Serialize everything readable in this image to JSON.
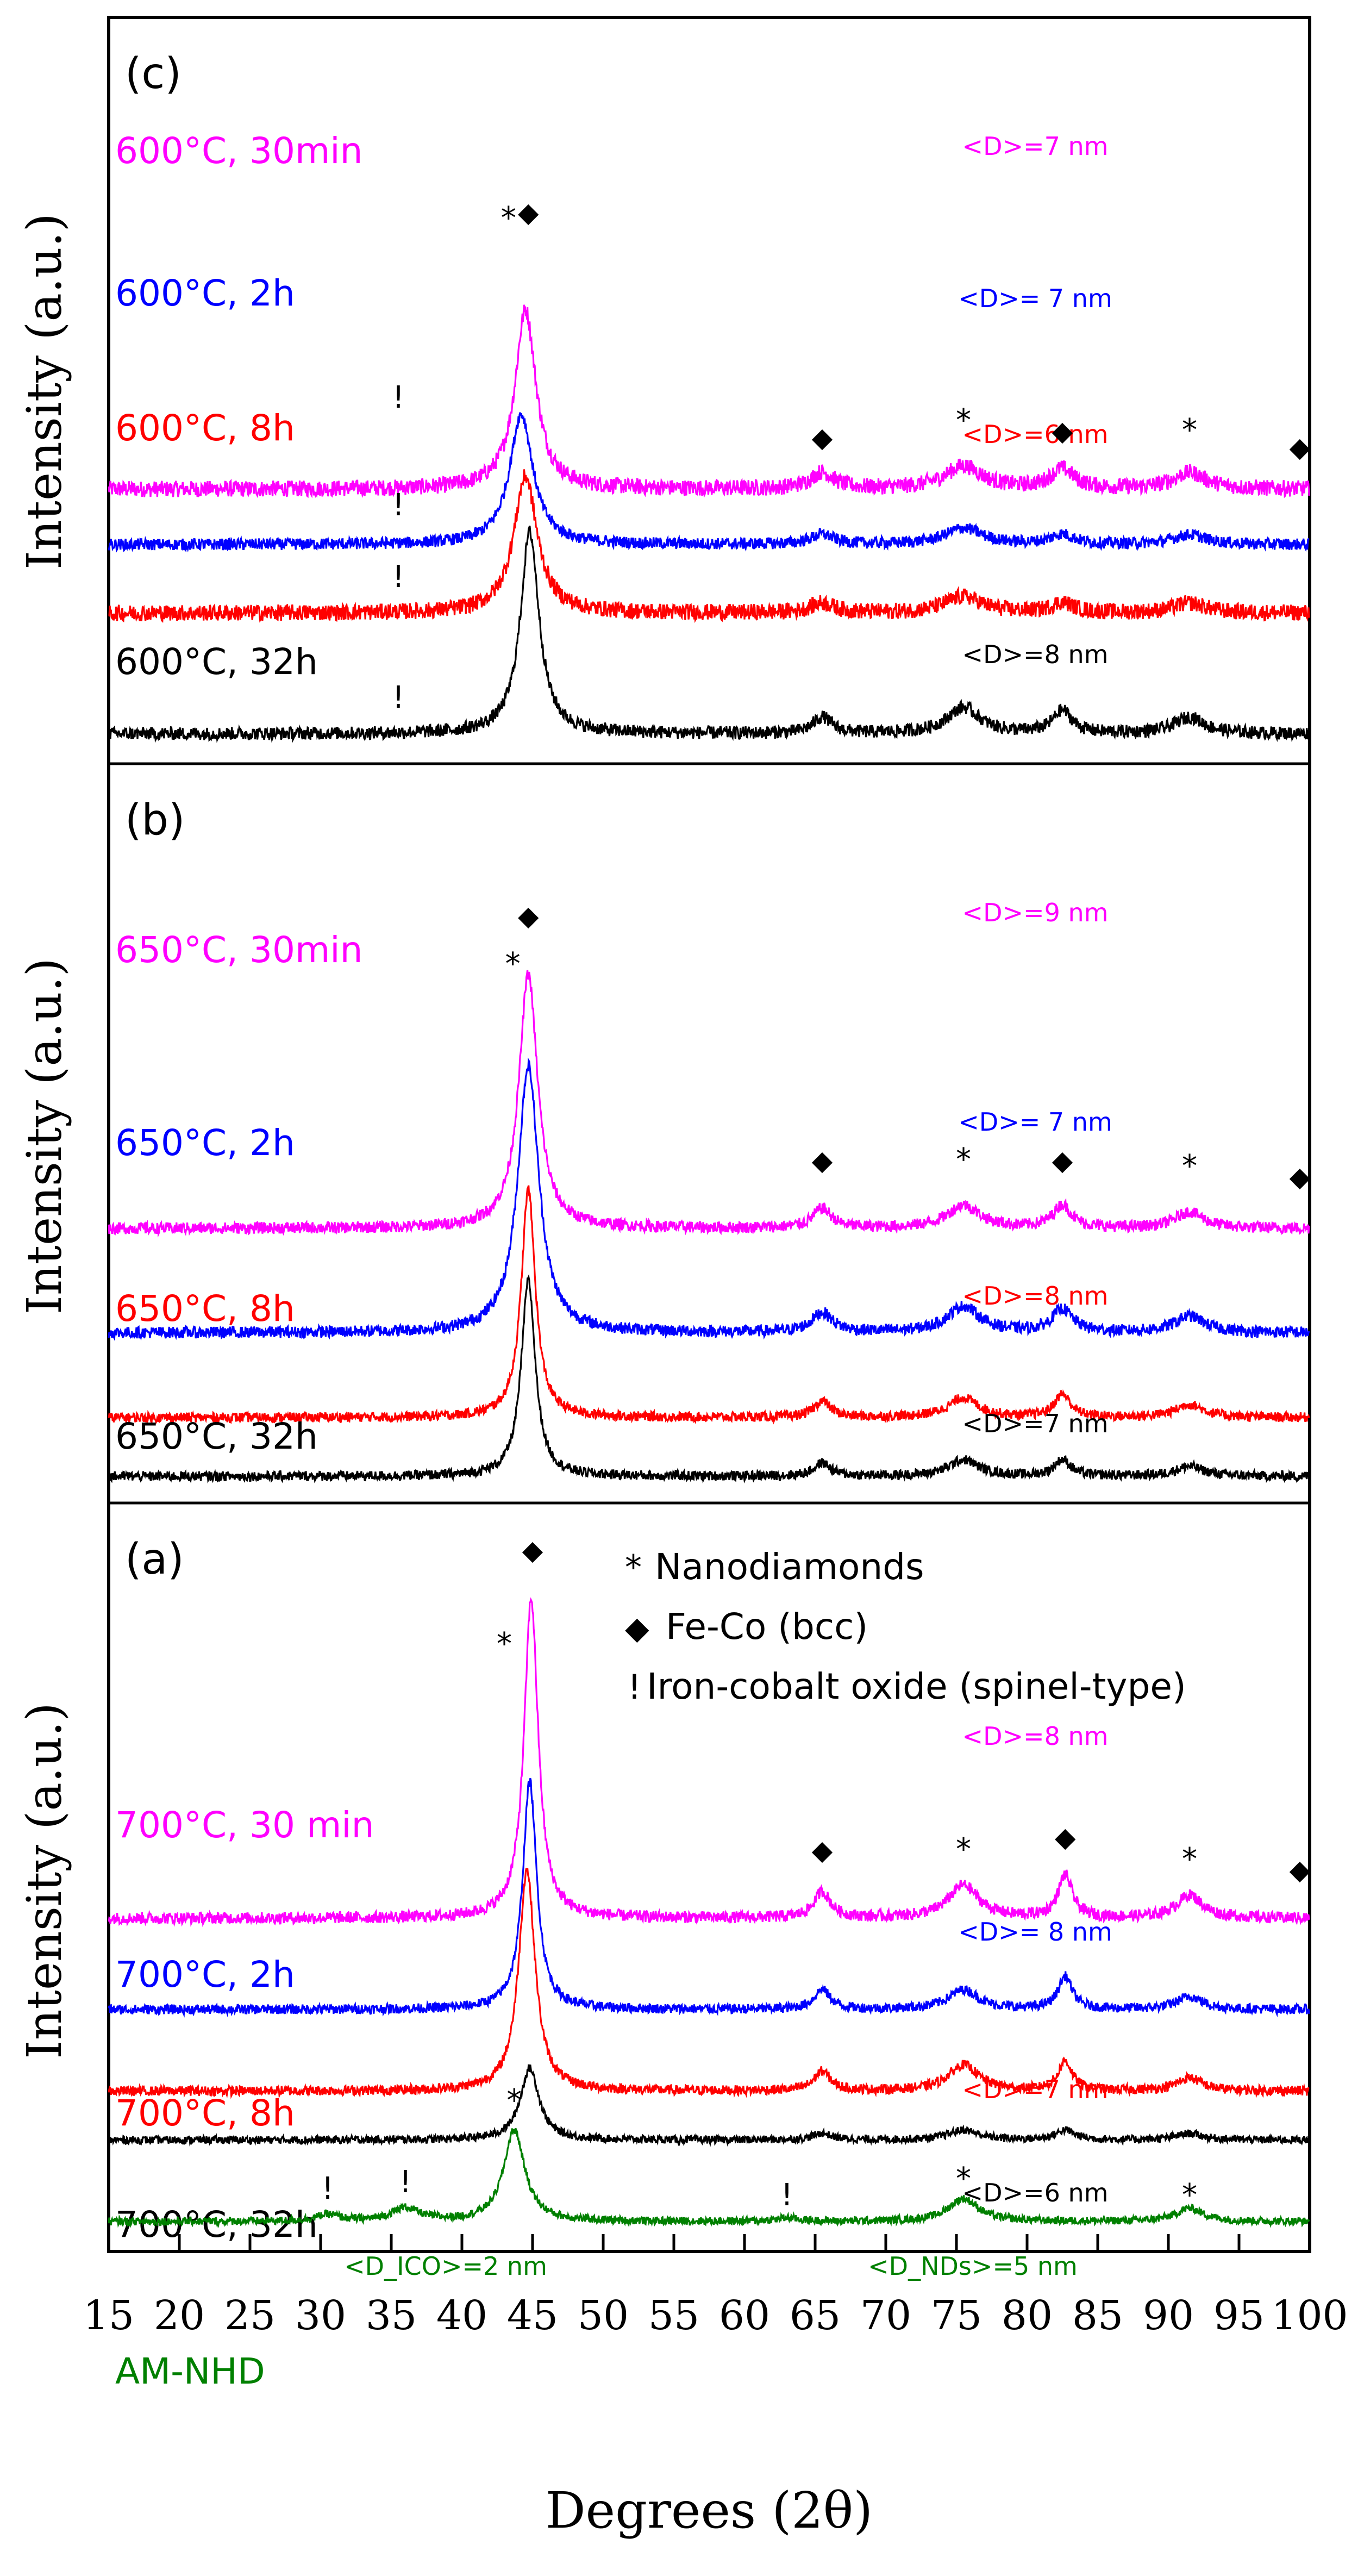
{
  "chart_data": {
    "type": "line",
    "title": "",
    "xlabel": "Degrees (2θ)",
    "ylabel": "Intensity (a.u.)",
    "xlim": [
      15,
      100
    ],
    "xticks": [
      15,
      20,
      25,
      30,
      35,
      40,
      45,
      50,
      55,
      60,
      65,
      70,
      75,
      80,
      85,
      90,
      95,
      100
    ],
    "colors": {
      "magenta": "#ff00ff",
      "blue": "#0000ff",
      "red": "#ff0000",
      "black": "#000000",
      "green": "#008000"
    },
    "legend": [
      {
        "symbol": "*",
        "text": "Nanodiamonds"
      },
      {
        "symbol": "◆",
        "text": "Fe-Co (bcc)"
      },
      {
        "symbol": "!",
        "text": "Iron-cobalt oxide (spinel-type)"
      }
    ],
    "panels": [
      {
        "id": "c",
        "label": "(c)",
        "series": [
          {
            "name": "600°C, 30min",
            "color": "#ff00ff",
            "size": "<D>=7 nm",
            "baseline": 0.8,
            "peaks": [
              [
                44.5,
                0.55,
                0.9
              ],
              [
                65.5,
                0.05,
                1.0
              ],
              [
                75.5,
                0.07,
                1.6
              ],
              [
                82.5,
                0.06,
                1.0
              ],
              [
                91.5,
                0.05,
                1.4
              ]
            ],
            "noise": 0.025
          },
          {
            "name": "600°C, 2h",
            "color": "#0000ff",
            "size": "<D>= 7 nm",
            "baseline": 0.63,
            "peaks": [
              [
                44.2,
                0.4,
                1.0
              ],
              [
                65.5,
                0.03,
                1.0
              ],
              [
                75.5,
                0.05,
                1.6
              ],
              [
                82.5,
                0.03,
                1.0
              ],
              [
                91.5,
                0.03,
                1.4
              ]
            ],
            "noise": 0.018
          },
          {
            "name": "600°C, 8h",
            "color": "#ff0000",
            "size": "<D>=6 nm",
            "baseline": 0.42,
            "peaks": [
              [
                44.5,
                0.42,
                1.0
              ],
              [
                65.5,
                0.03,
                1.0
              ],
              [
                75.5,
                0.05,
                1.6
              ],
              [
                82.5,
                0.03,
                1.0
              ],
              [
                91.5,
                0.03,
                1.4
              ]
            ],
            "noise": 0.025
          },
          {
            "name": "600°C, 32h",
            "color": "#000000",
            "size": "<D>=8 nm",
            "baseline": 0.05,
            "peaks": [
              [
                44.8,
                0.62,
                0.8
              ],
              [
                65.5,
                0.05,
                0.8
              ],
              [
                75.5,
                0.08,
                1.4
              ],
              [
                82.5,
                0.07,
                0.8
              ],
              [
                91.5,
                0.05,
                1.3
              ]
            ],
            "noise": 0.02
          }
        ],
        "markers": [
          {
            "symbol": "*",
            "x": 43.3,
            "y": 1.6
          },
          {
            "symbol": "◆",
            "x": 44.7,
            "y": 1.62
          },
          {
            "symbol": "!",
            "x": 35.5,
            "y": 1.05
          },
          {
            "symbol": "◆",
            "x": 65.5,
            "y": 0.93
          },
          {
            "symbol": "*",
            "x": 75.5,
            "y": 0.98
          },
          {
            "symbol": "◆",
            "x": 82.5,
            "y": 0.95
          },
          {
            "symbol": "*",
            "x": 91.5,
            "y": 0.95
          },
          {
            "symbol": "◆",
            "x": 99.3,
            "y": 0.9
          },
          {
            "symbol": "!",
            "x": 35.5,
            "y": 0.72
          },
          {
            "symbol": "!",
            "x": 35.5,
            "y": 0.5
          },
          {
            "symbol": "!",
            "x": 35.5,
            "y": 0.13
          }
        ]
      },
      {
        "id": "b",
        "label": "(b)",
        "series": [
          {
            "name": "650°C, 30min",
            "color": "#ff00ff",
            "size": "<D>=9 nm",
            "baseline": 0.8,
            "peaks": [
              [
                44.7,
                0.78,
                0.8
              ],
              [
                65.5,
                0.06,
                0.8
              ],
              [
                75.5,
                0.07,
                1.4
              ],
              [
                82.5,
                0.07,
                0.8
              ],
              [
                91.5,
                0.05,
                1.2
              ]
            ],
            "noise": 0.018
          },
          {
            "name": "650°C, 2h",
            "color": "#0000ff",
            "size": "<D>= 7 nm",
            "baseline": 0.48,
            "peaks": [
              [
                44.7,
                0.82,
                0.9
              ],
              [
                65.5,
                0.06,
                0.9
              ],
              [
                75.5,
                0.08,
                1.4
              ],
              [
                82.5,
                0.07,
                0.9
              ],
              [
                91.5,
                0.05,
                1.3
              ]
            ],
            "noise": 0.018
          },
          {
            "name": "650°C, 8h",
            "color": "#ff0000",
            "size": "<D>=8 nm",
            "baseline": 0.22,
            "peaks": [
              [
                44.7,
                0.7,
                0.6
              ],
              [
                65.5,
                0.05,
                0.7
              ],
              [
                75.5,
                0.06,
                1.3
              ],
              [
                82.5,
                0.07,
                0.7
              ],
              [
                91.5,
                0.04,
                1.2
              ]
            ],
            "noise": 0.015
          },
          {
            "name": "650°C, 32h",
            "color": "#000000",
            "size": "<D>=7 nm",
            "baseline": 0.04,
            "peaks": [
              [
                44.7,
                0.6,
                0.6
              ],
              [
                65.5,
                0.04,
                0.7
              ],
              [
                75.5,
                0.05,
                1.3
              ],
              [
                82.5,
                0.05,
                0.7
              ],
              [
                91.5,
                0.03,
                1.2
              ]
            ],
            "noise": 0.015
          }
        ],
        "markers": [
          {
            "symbol": "*",
            "x": 43.6,
            "y": 1.58
          },
          {
            "symbol": "◆",
            "x": 44.7,
            "y": 1.73
          },
          {
            "symbol": "◆",
            "x": 65.5,
            "y": 0.98
          },
          {
            "symbol": "*",
            "x": 75.5,
            "y": 0.98
          },
          {
            "symbol": "◆",
            "x": 82.5,
            "y": 0.98
          },
          {
            "symbol": "*",
            "x": 91.5,
            "y": 0.96
          },
          {
            "symbol": "◆",
            "x": 99.3,
            "y": 0.93
          }
        ]
      },
      {
        "id": "a",
        "label": "(a)",
        "series": [
          {
            "name": "700°C, 30 min",
            "color": "#ff00ff",
            "size": "<D>=8 nm",
            "baseline": 0.98,
            "peaks": [
              [
                44.9,
                0.98,
                0.6
              ],
              [
                65.5,
                0.08,
                0.7
              ],
              [
                75.5,
                0.1,
                1.3
              ],
              [
                82.7,
                0.13,
                0.6
              ],
              [
                91.5,
                0.07,
                1.1
              ]
            ],
            "noise": 0.018
          },
          {
            "name": "700°C, 2h",
            "color": "#0000ff",
            "size": "<D>= 8 nm",
            "baseline": 0.7,
            "peaks": [
              [
                44.8,
                0.7,
                0.6
              ],
              [
                65.5,
                0.06,
                0.7
              ],
              [
                75.5,
                0.06,
                1.3
              ],
              [
                82.7,
                0.1,
                0.6
              ],
              [
                91.5,
                0.04,
                1.1
              ]
            ],
            "noise": 0.015
          },
          {
            "name": "700°C, 8h",
            "color": "#ff0000",
            "size": "<D>=7 nm",
            "baseline": 0.45,
            "peaks": [
              [
                44.6,
                0.68,
                0.7
              ],
              [
                65.5,
                0.06,
                0.7
              ],
              [
                75.5,
                0.08,
                1.3
              ],
              [
                82.7,
                0.09,
                0.6
              ],
              [
                91.5,
                0.04,
                1.1
              ]
            ],
            "noise": 0.015
          },
          {
            "name": "700°C, 32h",
            "color": "#000000",
            "size": "<D>=6 nm",
            "baseline": 0.3,
            "peaks": [
              [
                44.8,
                0.22,
                0.8
              ],
              [
                65.5,
                0.02,
                0.8
              ],
              [
                75.5,
                0.03,
                1.3
              ],
              [
                82.7,
                0.03,
                0.8
              ],
              [
                91.5,
                0.02,
                1.1
              ]
            ],
            "noise": 0.012
          },
          {
            "name": "AM-NHD",
            "color": "#008000",
            "size": "<D_ICO>=2 nm",
            "size2": "<D_NDs>=5 nm",
            "baseline": 0.05,
            "peaks": [
              [
                43.7,
                0.28,
                0.9
              ],
              [
                36.0,
                0.04,
                1.2
              ],
              [
                30.5,
                0.02,
                1.0
              ],
              [
                63.0,
                0.01,
                1.0
              ],
              [
                75.5,
                0.07,
                1.3
              ],
              [
                91.5,
                0.04,
                1.2
              ]
            ],
            "noise": 0.012
          }
        ],
        "markers": [
          {
            "symbol": "◆",
            "x": 45.0,
            "y": 2.08
          },
          {
            "symbol": "*",
            "x": 43.0,
            "y": 1.79
          },
          {
            "symbol": "◆",
            "x": 65.5,
            "y": 1.16
          },
          {
            "symbol": "*",
            "x": 75.5,
            "y": 1.16
          },
          {
            "symbol": "◆",
            "x": 82.7,
            "y": 1.2
          },
          {
            "symbol": "*",
            "x": 91.5,
            "y": 1.13
          },
          {
            "symbol": "◆",
            "x": 99.3,
            "y": 1.1
          },
          {
            "symbol": "*",
            "x": 43.7,
            "y": 0.39
          },
          {
            "symbol": "!",
            "x": 30.5,
            "y": 0.12
          },
          {
            "symbol": "!",
            "x": 36.0,
            "y": 0.14
          },
          {
            "symbol": "!",
            "x": 63.0,
            "y": 0.1
          },
          {
            "symbol": "*",
            "x": 75.5,
            "y": 0.15
          },
          {
            "symbol": "*",
            "x": 91.5,
            "y": 0.1
          }
        ]
      }
    ]
  }
}
